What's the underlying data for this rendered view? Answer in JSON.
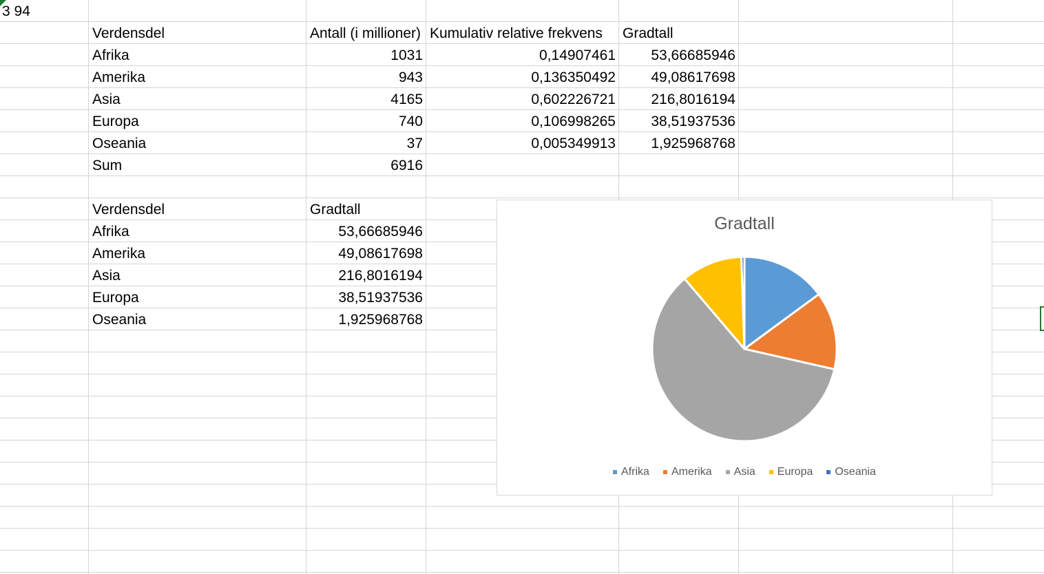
{
  "name_box_text": "3 94",
  "table1": {
    "headers": [
      "Verdensdel",
      "Antall (i millioner)",
      "Kumulativ relative frekvens",
      "Gradtall"
    ],
    "rows": [
      [
        "Afrika",
        "1031",
        "0,14907461",
        "53,66685946"
      ],
      [
        "Amerika",
        "943",
        "0,136350492",
        "49,08617698"
      ],
      [
        "Asia",
        "4165",
        "0,602226721",
        "216,8016194"
      ],
      [
        "Europa",
        "740",
        "0,106998265",
        "38,51937536"
      ],
      [
        "Oseania",
        "37",
        "0,005349913",
        "1,925968768"
      ]
    ],
    "sum_label": "Sum",
    "sum_value": "6916"
  },
  "table2": {
    "headers": [
      "Verdensdel",
      "Gradtall"
    ],
    "rows": [
      [
        "Afrika",
        "53,66685946"
      ],
      [
        "Amerika",
        "49,08617698"
      ],
      [
        "Asia",
        "216,8016194"
      ],
      [
        "Europa",
        "38,51937536"
      ],
      [
        "Oseania",
        "1,925968768"
      ]
    ]
  },
  "chart_data": {
    "type": "pie",
    "title": "Gradtall",
    "categories": [
      "Afrika",
      "Amerika",
      "Asia",
      "Europa",
      "Oseania"
    ],
    "values": [
      53.66685946,
      49.08617698,
      216.8016194,
      38.51937536,
      1.925968768
    ],
    "colors": [
      "#5b9bd5",
      "#ed7d31",
      "#a5a5a5",
      "#ffc000",
      "#4472c4"
    ],
    "legend_position": "bottom"
  }
}
